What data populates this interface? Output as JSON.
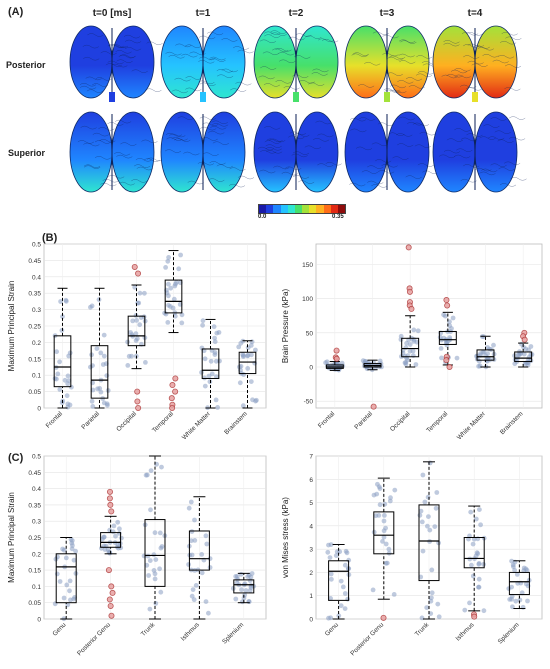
{
  "panel_labels": [
    "(A)",
    "(B)",
    "(C)"
  ],
  "panelA": {
    "time_labels": [
      "t=0 [ms]",
      "t=1",
      "t=2",
      "t=3",
      "t=4"
    ],
    "row_labels": [
      "Posterior",
      "Superior"
    ],
    "colorbar": {
      "min_label": "0.0",
      "max_label": "0.35",
      "colors": [
        "#1a1aa8",
        "#1f3fe0",
        "#1f86ff",
        "#25c3ff",
        "#2fe6d0",
        "#47e06a",
        "#a3e23a",
        "#e7e02a",
        "#ffb020",
        "#ff6d18",
        "#e22a14",
        "#8e0c0c"
      ]
    },
    "images": [
      {
        "view": "Posterior",
        "time": "t=0 [ms]",
        "level": 0.15
      },
      {
        "view": "Posterior",
        "time": "t=1",
        "level": 0.35
      },
      {
        "view": "Posterior",
        "time": "t=2",
        "level": 0.6
      },
      {
        "view": "Posterior",
        "time": "t=3",
        "level": 0.8
      },
      {
        "view": "Posterior",
        "time": "t=4",
        "level": 0.95
      },
      {
        "view": "Superior",
        "time": "t=0 [ms]",
        "level": 0.22
      },
      {
        "view": "Superior",
        "time": "t=1",
        "level": 0.2
      },
      {
        "view": "Superior",
        "time": "t=2",
        "level": 0.15
      },
      {
        "view": "Superior",
        "time": "t=3",
        "level": 0.1
      },
      {
        "view": "Superior",
        "time": "t=4",
        "level": 0.08
      }
    ]
  },
  "chart_data": [
    {
      "type": "box",
      "panel": "(B)",
      "ylabel": "Maximum Principal Strain",
      "ylim": [
        0,
        0.5
      ],
      "yticks": [
        "0",
        "0.05",
        "0.1",
        "0.15",
        "0.2",
        "0.25",
        "0.3",
        "0.35",
        "0.4",
        "0.45",
        "0.5"
      ],
      "categories": [
        "Frontal",
        "Parietal",
        "Occipital",
        "Temporal",
        "White Matter",
        "Brainstem"
      ],
      "grid": true,
      "boxes": [
        {
          "whislo": 0.0,
          "q1": 0.065,
          "med": 0.125,
          "q3": 0.22,
          "whishi": 0.365,
          "outliers": []
        },
        {
          "whislo": 0.0,
          "q1": 0.03,
          "med": 0.085,
          "q3": 0.19,
          "whishi": 0.365,
          "outliers": []
        },
        {
          "whislo": 0.12,
          "q1": 0.19,
          "med": 0.22,
          "q3": 0.28,
          "whishi": 0.375,
          "outliers": [
            0.43,
            0.41,
            0.05,
            0.02,
            0.0
          ]
        },
        {
          "whislo": 0.23,
          "q1": 0.29,
          "med": 0.325,
          "q3": 0.39,
          "whishi": 0.48,
          "outliers": [
            0.09,
            0.07,
            0.05,
            0.03,
            0.01,
            0.0
          ]
        },
        {
          "whislo": 0.0,
          "q1": 0.09,
          "med": 0.115,
          "q3": 0.18,
          "whishi": 0.27,
          "outliers": []
        },
        {
          "whislo": 0.0,
          "q1": 0.105,
          "med": 0.14,
          "q3": 0.17,
          "whishi": 0.205,
          "outliers": []
        }
      ]
    },
    {
      "type": "box",
      "panel": "(B)",
      "ylabel": "Brain Pressure (kPa)",
      "ylim": [
        -60,
        180
      ],
      "yticks": [
        "-50",
        "0",
        "50",
        "100",
        "150"
      ],
      "categories": [
        "Frontal",
        "Parietal",
        "Occipital",
        "Temporal",
        "White Matter",
        "Brainstem"
      ],
      "grid": true,
      "boxes": [
        {
          "whislo": -5,
          "q1": -2,
          "med": 0,
          "q3": 3,
          "whishi": 8,
          "outliers": [
            24,
            14,
            12
          ]
        },
        {
          "whislo": -4,
          "q1": 0,
          "med": 2,
          "q3": 5,
          "whishi": 10,
          "outliers": [
            -58
          ]
        },
        {
          "whislo": 0,
          "q1": 15,
          "med": 27,
          "q3": 42,
          "whishi": 75,
          "outliers": [
            175,
            115,
            110,
            95,
            90,
            85
          ]
        },
        {
          "whislo": 3,
          "q1": 33,
          "med": 40,
          "q3": 52,
          "whishi": 80,
          "outliers": [
            98,
            90,
            15,
            10,
            0
          ]
        },
        {
          "whislo": 0,
          "q1": 10,
          "med": 15,
          "q3": 25,
          "whishi": 45,
          "outliers": []
        },
        {
          "whislo": 0,
          "q1": 8,
          "med": 13,
          "q3": 22,
          "whishi": 35,
          "outliers": [
            50,
            45,
            40
          ]
        }
      ]
    },
    {
      "type": "box",
      "panel": "(C)",
      "ylabel": "Maximum Principal Strain",
      "ylim": [
        0,
        0.5
      ],
      "yticks": [
        "0",
        "0.05",
        "0.1",
        "0.15",
        "0.2",
        "0.25",
        "0.3",
        "0.35",
        "0.4",
        "0.45",
        "0.5"
      ],
      "categories": [
        "Genu",
        "Posterior Genu",
        "Trunk",
        "Isthmus",
        "Splenium"
      ],
      "grid": true,
      "boxes": [
        {
          "whislo": 0.0,
          "q1": 0.05,
          "med": 0.16,
          "q3": 0.2,
          "whishi": 0.25,
          "outliers": []
        },
        {
          "whislo": 0.2,
          "q1": 0.22,
          "med": 0.235,
          "q3": 0.265,
          "whishi": 0.315,
          "outliers": [
            0.39,
            0.37,
            0.35,
            0.33,
            0.15,
            0.1,
            0.08,
            0.06,
            0.04,
            0.01
          ]
        },
        {
          "whislo": 0.0,
          "q1": 0.1,
          "med": 0.195,
          "q3": 0.305,
          "whishi": 0.5,
          "outliers": []
        },
        {
          "whislo": 0.0,
          "q1": 0.15,
          "med": 0.185,
          "q3": 0.27,
          "whishi": 0.375,
          "outliers": []
        },
        {
          "whislo": 0.05,
          "q1": 0.08,
          "med": 0.105,
          "q3": 0.12,
          "whishi": 0.14,
          "outliers": []
        }
      ]
    },
    {
      "type": "box",
      "panel": "(C)",
      "ylabel": "von Mises stress (kPa)",
      "ylim": [
        0,
        7
      ],
      "yticks": [
        "0",
        "1",
        "2",
        "3",
        "4",
        "5",
        "6",
        "7"
      ],
      "categories": [
        "Genu",
        "Posterior Genu",
        "Trunk",
        "Isthmus",
        "Splenium"
      ],
      "grid": true,
      "boxes": [
        {
          "whislo": 0.0,
          "q1": 0.8,
          "med": 2.05,
          "q3": 2.5,
          "whishi": 3.2,
          "outliers": []
        },
        {
          "whislo": 0.85,
          "q1": 2.8,
          "med": 3.6,
          "q3": 4.6,
          "whishi": 6.05,
          "outliers": [
            0.05
          ]
        },
        {
          "whislo": 0.0,
          "q1": 1.65,
          "med": 3.35,
          "q3": 4.9,
          "whishi": 6.75,
          "outliers": []
        },
        {
          "whislo": 0.35,
          "q1": 2.2,
          "med": 2.6,
          "q3": 3.5,
          "whishi": 4.85,
          "outliers": [
            0.2,
            0.1
          ]
        },
        {
          "whislo": 0.45,
          "q1": 1.05,
          "med": 1.6,
          "q3": 2.0,
          "whishi": 2.5,
          "outliers": []
        }
      ]
    }
  ]
}
